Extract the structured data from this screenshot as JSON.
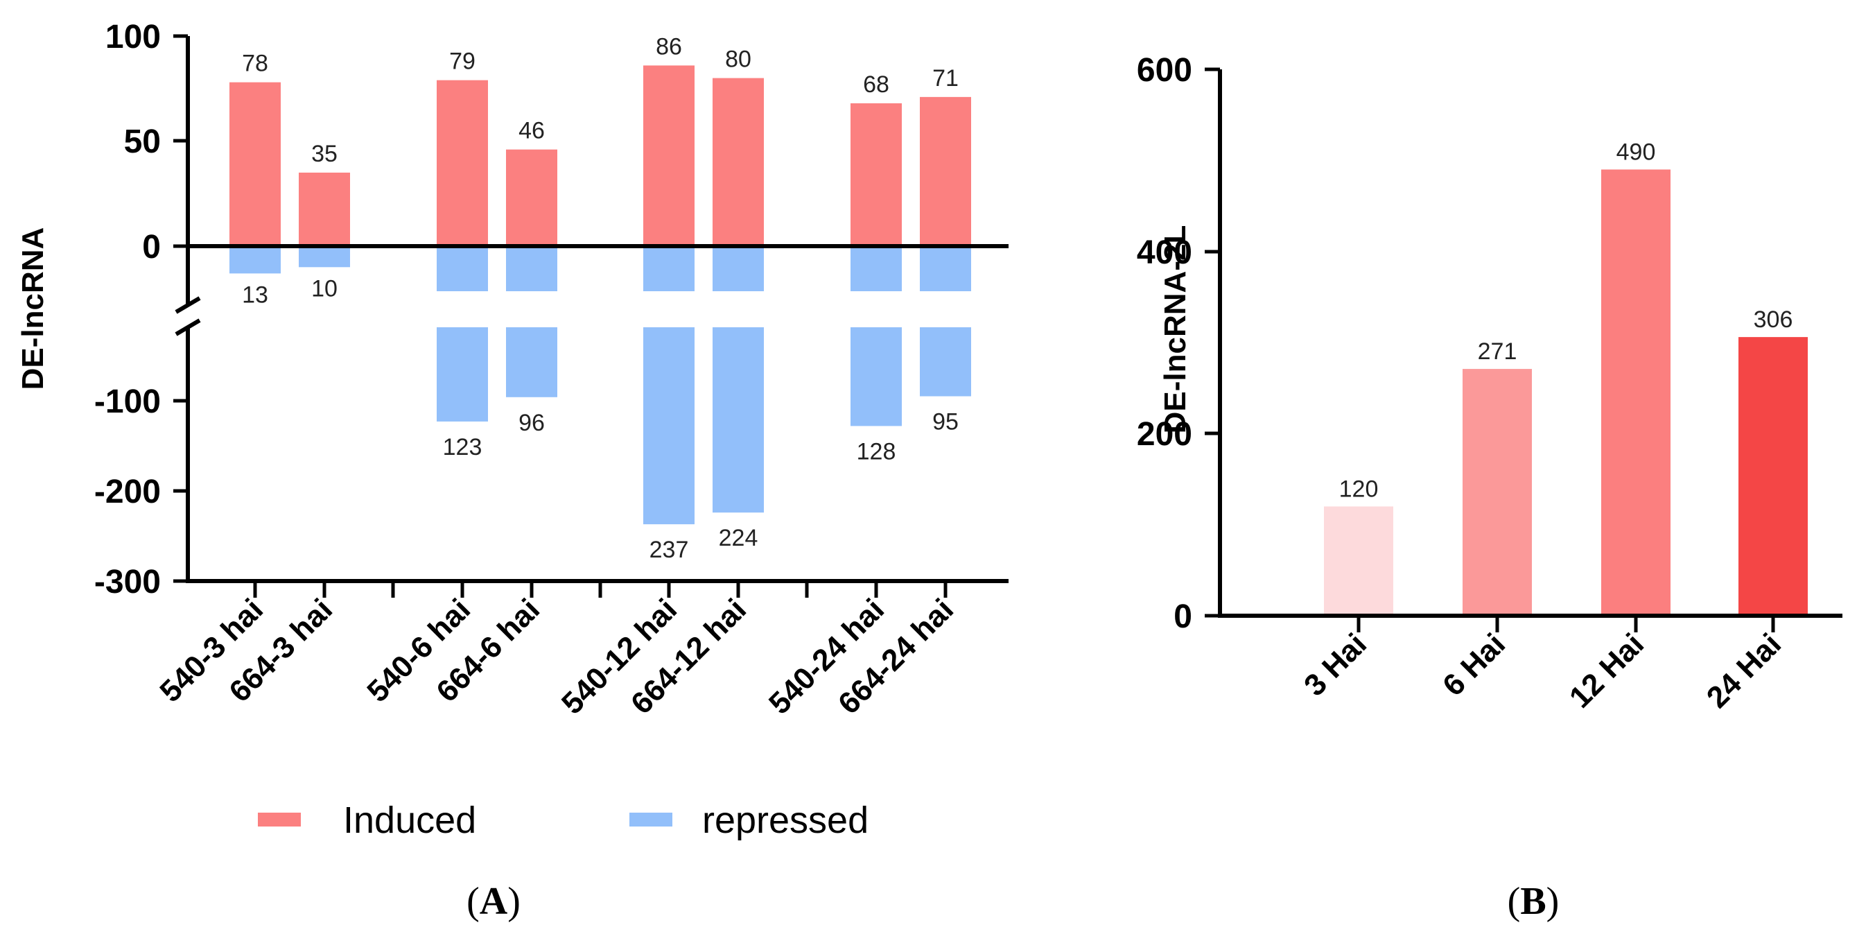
{
  "colors": {
    "induced": "#fb8080",
    "repressed": "#92bffa",
    "b_bars": [
      "#fddadc",
      "#fb9999",
      "#fb7f7f",
      "#f44646"
    ]
  },
  "chart_data": [
    {
      "type": "bar",
      "panel": "A",
      "ylabel": "DE-lncRNA",
      "categories": [
        "540-3 hai",
        "664-3 hai",
        "540-6 hai",
        "664-6 hai",
        "540-12 hai",
        "664-12 hai",
        "540-24 hai",
        "664-24 hai"
      ],
      "upper_yticks": [
        "100",
        "50",
        "0"
      ],
      "lower_yticks": [
        "-100",
        "-200",
        "-300"
      ],
      "upper_ylim": [
        0,
        100
      ],
      "lower_ylim": [
        -300,
        -40
      ],
      "axis_break": true,
      "grid": false,
      "legend_position": "bottom",
      "series": [
        {
          "name": "Induced",
          "values": [
            78,
            35,
            79,
            46,
            86,
            80,
            68,
            71
          ],
          "labels": [
            "78",
            "35",
            "79",
            "46",
            "86",
            "80",
            "68",
            "71"
          ]
        },
        {
          "name": "repressed",
          "values": [
            13,
            10,
            123,
            96,
            237,
            224,
            128,
            95
          ],
          "labels": [
            "13",
            "10",
            "123",
            "96",
            "237",
            "224",
            "128",
            "95"
          ]
        }
      ]
    },
    {
      "type": "bar",
      "panel": "B",
      "ylabel": "DE-lncRNA-2L",
      "categories": [
        "3 Hai",
        "6 Hai",
        "12 Hai",
        "24 Hai"
      ],
      "values": [
        120,
        271,
        490,
        306
      ],
      "labels": [
        "120",
        "271",
        "490",
        "306"
      ],
      "yticks": [
        "600",
        "400",
        "200",
        "0"
      ],
      "ylim": [
        0,
        600
      ],
      "grid": false
    }
  ],
  "captions": {
    "a": {
      "open": "(",
      "letter": "A",
      "close": ")"
    },
    "b": {
      "open": "(",
      "letter": "B",
      "close": ")"
    }
  }
}
